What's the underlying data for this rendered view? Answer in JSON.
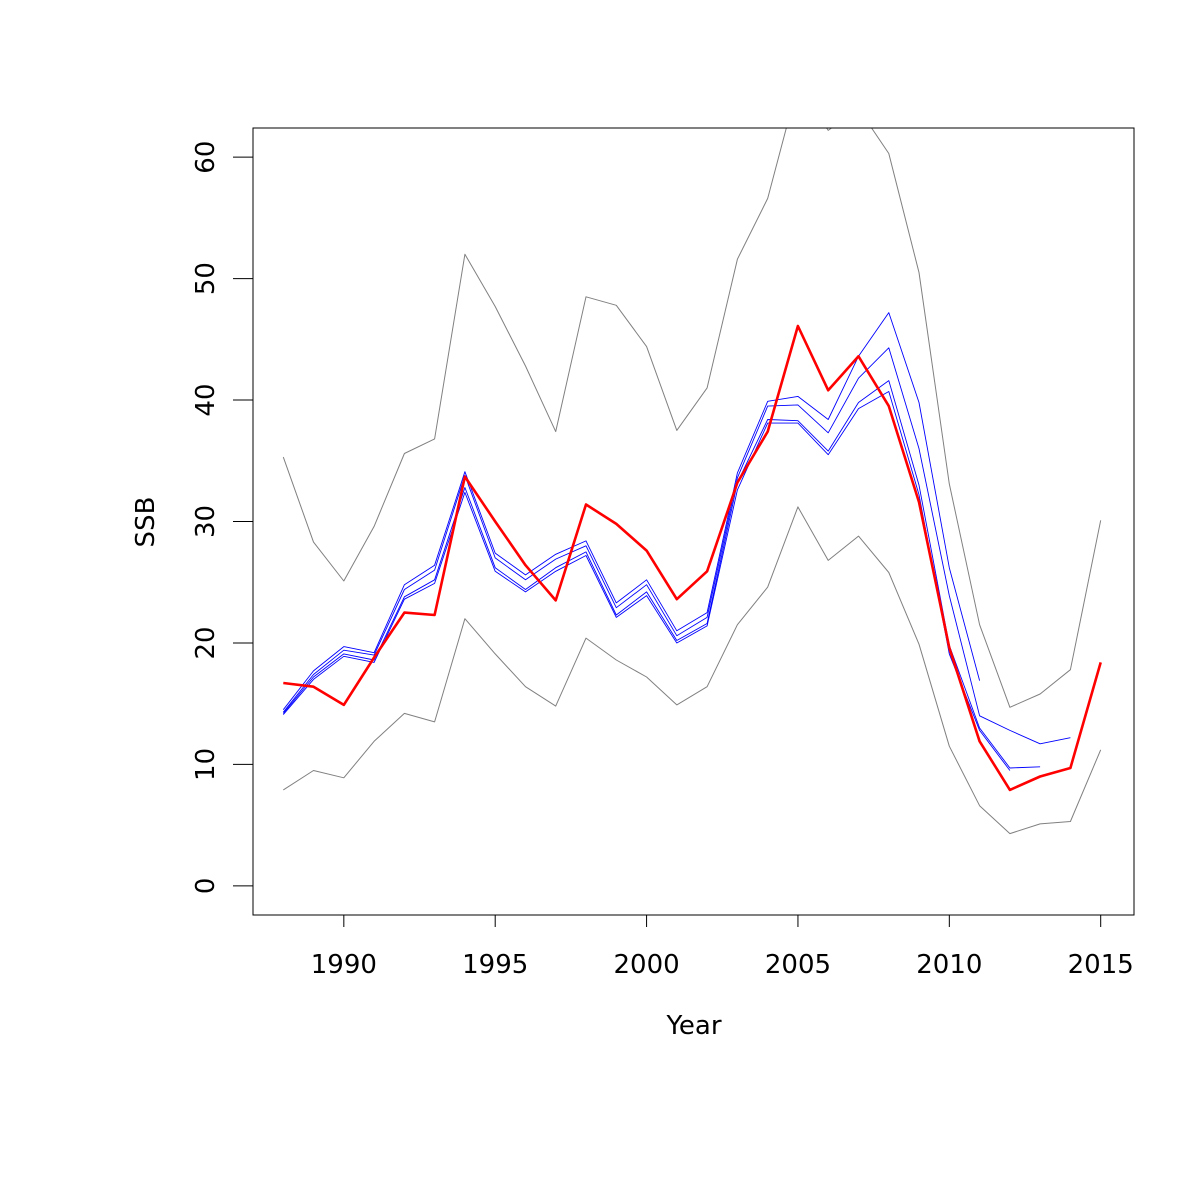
{
  "chart_data": {
    "type": "line",
    "title": "",
    "xlabel": "Year",
    "ylabel": "SSB",
    "xlim": [
      1987,
      2016.1
    ],
    "ylim": [
      -2.4,
      62.4
    ],
    "xticks": [
      1990,
      1995,
      2000,
      2005,
      2010,
      2015
    ],
    "yticks": [
      0,
      10,
      20,
      30,
      40,
      50,
      60
    ],
    "grid": false,
    "legend": "none",
    "colors": {
      "estimate": "#ff0000",
      "retro": "#0000ff",
      "bounds": "#808080"
    },
    "series": [
      {
        "role": "upper-bound",
        "x": [
          1988,
          1989,
          1990,
          1991,
          1992,
          1993,
          1994,
          1995,
          1996,
          1997,
          1998,
          1999,
          2000,
          2001,
          2002,
          2003,
          2004,
          2005,
          2006,
          2007,
          2008,
          2009,
          2010,
          2011,
          2012,
          2013,
          2014,
          2015
        ],
        "values": [
          35.3,
          28.3,
          25.1,
          29.6,
          35.6,
          36.8,
          52.0,
          47.7,
          42.8,
          37.4,
          48.5,
          47.8,
          44.4,
          37.5,
          41.0,
          51.6,
          56.6,
          66.0,
          62.2,
          64.0,
          60.3,
          50.5,
          33.1,
          21.5,
          14.7,
          15.8,
          17.8,
          30.1
        ]
      },
      {
        "role": "lower-bound",
        "x": [
          1988,
          1989,
          1990,
          1991,
          1992,
          1993,
          1994,
          1995,
          1996,
          1997,
          1998,
          1999,
          2000,
          2001,
          2002,
          2003,
          2004,
          2005,
          2006,
          2007,
          2008,
          2009,
          2010,
          2011,
          2012,
          2013,
          2014,
          2015
        ],
        "values": [
          7.9,
          9.5,
          8.9,
          11.9,
          14.2,
          13.5,
          22.0,
          19.1,
          16.4,
          14.8,
          20.4,
          18.6,
          17.2,
          14.9,
          16.4,
          21.5,
          24.6,
          31.2,
          26.8,
          28.8,
          25.8,
          19.9,
          11.5,
          6.6,
          4.3,
          5.1,
          5.3,
          11.2
        ]
      },
      {
        "role": "retrospective",
        "x": [
          1988,
          1989,
          1990,
          1991,
          1992,
          1993,
          1994,
          1995,
          1996,
          1997,
          1998,
          1999,
          2000,
          2001,
          2002,
          2003,
          2004,
          2005,
          2006,
          2007,
          2008,
          2009,
          2010,
          2011
        ],
        "values": [
          14.5,
          17.7,
          19.7,
          19.2,
          24.8,
          26.4,
          34.1,
          27.4,
          25.6,
          27.3,
          28.4,
          23.3,
          25.2,
          21.0,
          22.5,
          34.0,
          39.9,
          40.3,
          38.4,
          43.6,
          47.2,
          39.8,
          26.2,
          16.9
        ]
      },
      {
        "role": "retrospective",
        "x": [
          1988,
          1989,
          1990,
          1991,
          1992,
          1993,
          1994,
          1995,
          1996,
          1997,
          1998,
          1999,
          2000,
          2001,
          2002,
          2003,
          2004,
          2005,
          2006,
          2007,
          2008,
          2009,
          2010,
          2011,
          2012,
          2013,
          2014
        ],
        "values": [
          14.3,
          17.4,
          19.4,
          19.0,
          24.4,
          26.0,
          33.8,
          27.0,
          25.2,
          26.9,
          28.0,
          22.9,
          24.8,
          20.6,
          22.1,
          33.6,
          39.5,
          39.6,
          37.3,
          41.8,
          44.3,
          36.0,
          23.9,
          14.0,
          12.8,
          11.7,
          12.2
        ]
      },
      {
        "role": "retrospective",
        "x": [
          1988,
          1989,
          1990,
          1991,
          1992,
          1993,
          1994,
          1995,
          1996,
          1997,
          1998,
          1999,
          2000,
          2001,
          2002,
          2003,
          2004,
          2005,
          2006,
          2007,
          2008,
          2009,
          2010,
          2011,
          2012,
          2013
        ],
        "values": [
          14.2,
          17.2,
          19.1,
          18.6,
          23.8,
          25.2,
          32.8,
          26.2,
          24.4,
          26.2,
          27.5,
          22.3,
          24.2,
          20.2,
          21.6,
          33.2,
          38.4,
          38.3,
          35.8,
          39.8,
          41.6,
          33.0,
          19.8,
          13.0,
          9.7,
          9.8
        ]
      },
      {
        "role": "retrospective",
        "x": [
          1988,
          1989,
          1990,
          1991,
          1992,
          1993,
          1994,
          1995,
          1996,
          1997,
          1998,
          1999,
          2000,
          2001,
          2002,
          2003,
          2004,
          2005,
          2006,
          2007,
          2008,
          2009,
          2010,
          2011,
          2012
        ],
        "values": [
          14.1,
          17.0,
          18.9,
          18.4,
          23.6,
          24.9,
          32.4,
          25.9,
          24.2,
          25.9,
          27.2,
          22.1,
          23.9,
          20.0,
          21.4,
          32.6,
          38.1,
          38.1,
          35.5,
          39.3,
          40.7,
          32.2,
          19.1,
          12.8,
          9.5
        ]
      },
      {
        "role": "estimate",
        "x": [
          1988,
          1989,
          1990,
          1991,
          1992,
          1993,
          1994,
          1995,
          1996,
          1997,
          1998,
          1999,
          2000,
          2001,
          2002,
          2003,
          2004,
          2005,
          2006,
          2007,
          2008,
          2009,
          2010,
          2011,
          2012,
          2013,
          2014,
          2015
        ],
        "values": [
          16.7,
          16.4,
          14.9,
          18.8,
          22.5,
          22.3,
          33.7,
          30.0,
          26.4,
          23.5,
          31.4,
          29.8,
          27.6,
          23.6,
          25.9,
          33.2,
          37.4,
          46.1,
          40.8,
          43.6,
          39.5,
          31.6,
          19.6,
          11.9,
          7.9,
          9.0,
          9.7,
          18.4
        ]
      }
    ]
  }
}
